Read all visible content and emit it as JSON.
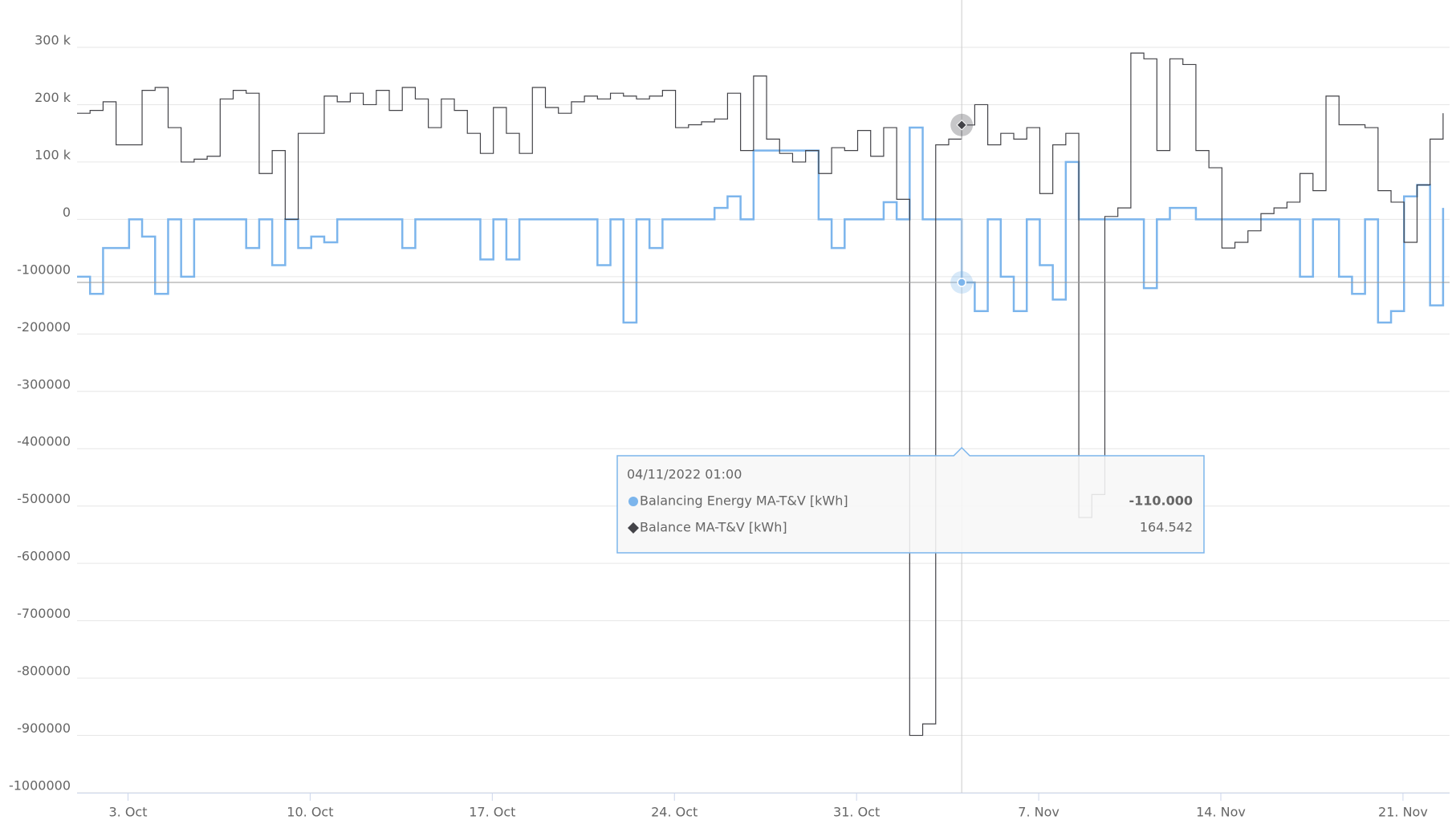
{
  "chart_data": {
    "type": "line",
    "step": true,
    "x": [
      "2022-10-01 01:00",
      "2022-10-01 13:00",
      "2022-10-02 01:00",
      "2022-10-02 13:00",
      "2022-10-03 01:00",
      "2022-10-03 13:00",
      "2022-10-04 01:00",
      "2022-10-04 13:00",
      "2022-10-05 01:00",
      "2022-10-05 13:00",
      "2022-10-06 01:00",
      "2022-10-06 13:00",
      "2022-10-07 01:00",
      "2022-10-07 13:00",
      "2022-10-08 01:00",
      "2022-10-08 13:00",
      "2022-10-09 01:00",
      "2022-10-09 13:00",
      "2022-10-10 01:00",
      "2022-10-10 13:00",
      "2022-10-11 01:00",
      "2022-10-11 13:00",
      "2022-10-12 01:00",
      "2022-10-12 13:00",
      "2022-10-13 01:00",
      "2022-10-13 13:00",
      "2022-10-14 01:00",
      "2022-10-14 13:00",
      "2022-10-15 01:00",
      "2022-10-15 13:00",
      "2022-10-16 01:00",
      "2022-10-16 13:00",
      "2022-10-17 01:00",
      "2022-10-17 13:00",
      "2022-10-18 01:00",
      "2022-10-18 13:00",
      "2022-10-19 01:00",
      "2022-10-19 13:00",
      "2022-10-20 01:00",
      "2022-10-20 13:00",
      "2022-10-21 01:00",
      "2022-10-21 13:00",
      "2022-10-22 01:00",
      "2022-10-22 13:00",
      "2022-10-23 01:00",
      "2022-10-23 13:00",
      "2022-10-24 01:00",
      "2022-10-24 13:00",
      "2022-10-25 01:00",
      "2022-10-25 13:00",
      "2022-10-26 01:00",
      "2022-10-26 13:00",
      "2022-10-27 01:00",
      "2022-10-27 13:00",
      "2022-10-28 01:00",
      "2022-10-28 13:00",
      "2022-10-29 01:00",
      "2022-10-29 13:00",
      "2022-10-30 01:00",
      "2022-10-30 13:00",
      "2022-10-31 01:00",
      "2022-10-31 13:00",
      "2022-11-01 01:00",
      "2022-11-01 13:00",
      "2022-11-02 01:00",
      "2022-11-02 13:00",
      "2022-11-03 01:00",
      "2022-11-03 13:00",
      "2022-11-04 01:00",
      "2022-11-04 13:00",
      "2022-11-05 01:00",
      "2022-11-05 13:00",
      "2022-11-06 01:00",
      "2022-11-06 13:00",
      "2022-11-07 01:00",
      "2022-11-07 13:00",
      "2022-11-08 01:00",
      "2022-11-08 13:00",
      "2022-11-09 01:00",
      "2022-11-09 13:00",
      "2022-11-10 01:00",
      "2022-11-10 13:00",
      "2022-11-11 01:00",
      "2022-11-11 13:00",
      "2022-11-12 01:00",
      "2022-11-12 13:00",
      "2022-11-13 01:00",
      "2022-11-13 13:00",
      "2022-11-14 01:00",
      "2022-11-14 13:00",
      "2022-11-15 01:00",
      "2022-11-15 13:00",
      "2022-11-16 01:00",
      "2022-11-16 13:00",
      "2022-11-17 01:00",
      "2022-11-17 13:00",
      "2022-11-18 01:00",
      "2022-11-18 13:00",
      "2022-11-19 01:00",
      "2022-11-19 13:00",
      "2022-11-20 01:00",
      "2022-11-20 13:00",
      "2022-11-21 01:00",
      "2022-11-21 13:00",
      "2022-11-22 01:00",
      "2022-11-22 13:00"
    ],
    "series": [
      {
        "name": "Balancing Energy MA-T&V [kWh]",
        "color": "#7cb5ec",
        "width": 2.5,
        "values": [
          -100000,
          -130000,
          -50000,
          -50000,
          0,
          -30000,
          -130000,
          0,
          -100000,
          0,
          0,
          0,
          0,
          -50000,
          0,
          -80000,
          0,
          -50000,
          -30000,
          -40000,
          0,
          0,
          0,
          0,
          0,
          -50000,
          0,
          0,
          0,
          0,
          0,
          -70000,
          0,
          -70000,
          0,
          0,
          0,
          0,
          0,
          0,
          -80000,
          0,
          -180000,
          0,
          -50000,
          0,
          0,
          0,
          0,
          20000,
          40000,
          0,
          120000,
          120000,
          120000,
          120000,
          120000,
          0,
          -50000,
          0,
          0,
          0,
          30000,
          0,
          160000,
          0,
          0,
          0,
          -110000,
          -160000,
          0,
          -100000,
          -160000,
          0,
          -80000,
          -140000,
          100000,
          0,
          0,
          0,
          0,
          0,
          -120000,
          0,
          20000,
          20000,
          0,
          0,
          0,
          0,
          0,
          0,
          0,
          0,
          -100000,
          0,
          0,
          -100000,
          -130000,
          0,
          -180000,
          -160000,
          40000,
          60000,
          -150000,
          20000
        ]
      },
      {
        "name": "Balance MA-T&V [kWh]",
        "color": "#434348",
        "width": 1.2,
        "values": [
          185000,
          190000,
          205000,
          130000,
          130000,
          225000,
          230000,
          160000,
          100000,
          105000,
          110000,
          210000,
          225000,
          220000,
          80000,
          120000,
          0,
          150000,
          150000,
          215000,
          205000,
          220000,
          200000,
          225000,
          190000,
          230000,
          210000,
          160000,
          210000,
          190000,
          150000,
          115000,
          195000,
          150000,
          115000,
          230000,
          195000,
          185000,
          205000,
          215000,
          210000,
          220000,
          215000,
          210000,
          215000,
          225000,
          160000,
          165000,
          170000,
          175000,
          220000,
          120000,
          250000,
          140000,
          115000,
          100000,
          120000,
          80000,
          125000,
          120000,
          155000,
          110000,
          160000,
          35000,
          -900000,
          -880000,
          130000,
          140000,
          164542,
          200000,
          130000,
          150000,
          140000,
          160000,
          45000,
          130000,
          150000,
          -520000,
          -480000,
          5000,
          20000,
          290000,
          280000,
          120000,
          280000,
          270000,
          120000,
          90000,
          -50000,
          -40000,
          -20000,
          10000,
          20000,
          30000,
          80000,
          50000,
          215000,
          165000,
          165000,
          160000,
          50000,
          30000,
          -40000,
          60000,
          140000,
          185000
        ]
      }
    ],
    "xlim": [
      "2022-10-01 01:00",
      "2022-11-22 19:00"
    ],
    "xticks": [
      {
        "value": "2022-10-03 00:00",
        "label": "3. Oct"
      },
      {
        "value": "2022-10-10 00:00",
        "label": "10. Oct"
      },
      {
        "value": "2022-10-17 00:00",
        "label": "17. Oct"
      },
      {
        "value": "2022-10-24 00:00",
        "label": "24. Oct"
      },
      {
        "value": "2022-10-31 00:00",
        "label": "31. Oct"
      },
      {
        "value": "2022-11-07 00:00",
        "label": "7. Nov"
      },
      {
        "value": "2022-11-14 00:00",
        "label": "14. Nov"
      },
      {
        "value": "2022-11-21 00:00",
        "label": "21. Nov"
      }
    ],
    "ylim": [
      -1000000,
      300000
    ],
    "yticks": [
      -1000000,
      -900000,
      -800000,
      -700000,
      -600000,
      -500000,
      -400000,
      -300000,
      -200000,
      -100000,
      0,
      {
        "value": 100000,
        "label": "100 k"
      },
      {
        "value": 200000,
        "label": "200 k"
      },
      {
        "value": 300000,
        "label": "300 k"
      }
    ],
    "grid": true,
    "tooltip": {
      "x": "2022-11-04 01:00",
      "title": "04/11/2022 01:00",
      "value_labels": [
        "-110.000",
        "164.542"
      ]
    }
  }
}
